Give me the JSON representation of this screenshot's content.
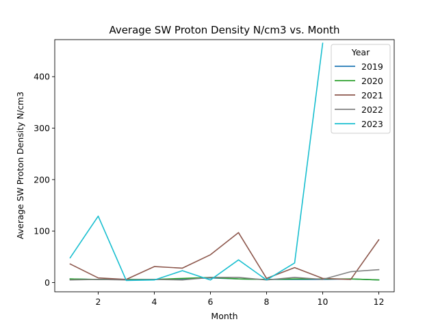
{
  "chart_data": {
    "type": "line",
    "title": "Average SW Proton Density N/cm3 vs. Month",
    "xlabel": "Month",
    "ylabel": "Average SW Proton Density N/cm3",
    "xlim": [
      0.45,
      12.55
    ],
    "ylim": [
      -18,
      472
    ],
    "xticks": [
      2,
      4,
      6,
      8,
      10,
      12
    ],
    "yticks": [
      0,
      100,
      200,
      300,
      400
    ],
    "grid": false,
    "legend": {
      "title": "Year",
      "placement": "top-right"
    },
    "series": [
      {
        "name": "2019",
        "color": "#1f77b4",
        "x": [
          1,
          2,
          3,
          4,
          5,
          6,
          7,
          8,
          9,
          10,
          11,
          12
        ],
        "y": [
          7,
          6,
          6,
          6,
          7,
          9,
          7,
          6,
          6,
          6,
          7,
          5
        ]
      },
      {
        "name": "2020",
        "color": "#2ca02c",
        "x": [
          1,
          2,
          3,
          4,
          5,
          6,
          7,
          8,
          9,
          10,
          11,
          12
        ],
        "y": [
          7,
          6,
          6,
          6,
          8,
          10,
          7,
          6,
          7,
          7,
          7,
          5
        ]
      },
      {
        "name": "2021",
        "color": "#8c564b",
        "x": [
          1,
          2,
          3,
          4,
          5,
          6,
          7,
          8,
          9,
          10,
          11,
          12
        ],
        "y": [
          36,
          9,
          6,
          31,
          28,
          54,
          97,
          8,
          29,
          8,
          6,
          83
        ]
      },
      {
        "name": "2022",
        "color": "#7f7f7f",
        "x": [
          1,
          2,
          3,
          4,
          5,
          6,
          7,
          8,
          9,
          10,
          11,
          12
        ],
        "y": [
          5,
          6,
          5,
          6,
          5,
          10,
          10,
          5,
          10,
          6,
          21,
          25
        ]
      },
      {
        "name": "2023",
        "color": "#17becf",
        "x": [
          1,
          2,
          3,
          4,
          5,
          6,
          7,
          8,
          9,
          10
        ],
        "y": [
          48,
          129,
          4,
          5,
          23,
          5,
          44,
          5,
          38,
          465
        ]
      }
    ]
  }
}
